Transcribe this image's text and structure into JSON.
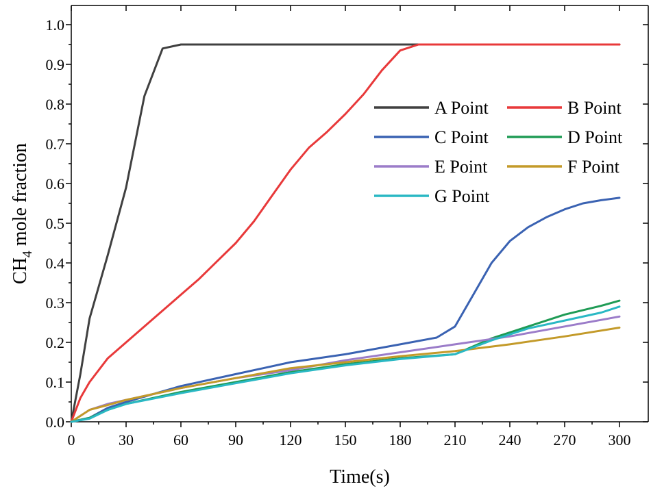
{
  "chart_data": {
    "type": "line",
    "xlabel": "Time(s)",
    "ylabel_main": "CH",
    "ylabel_sub": "4",
    "ylabel_rest": " mole fraction",
    "xlim": [
      0,
      315
    ],
    "ylim": [
      0,
      1.0
    ],
    "x_ticks": [
      0,
      30,
      60,
      90,
      120,
      150,
      180,
      210,
      240,
      270,
      300
    ],
    "x_tick_labels": [
      "0",
      "30",
      "60",
      "90",
      "120",
      "150",
      "180",
      "210",
      "240",
      "270",
      "300"
    ],
    "y_ticks": [
      0,
      0.1,
      0.2,
      0.3,
      0.4,
      0.5,
      0.6,
      0.7,
      0.8,
      0.9,
      1.0
    ],
    "y_tick_labels": [
      "0.0",
      "0.1",
      "0.2",
      "0.3",
      "0.4",
      "0.5",
      "0.6",
      "0.7",
      "0.8",
      "0.9",
      "1.0"
    ],
    "legend_position": "top-right",
    "series": [
      {
        "name": "A Point",
        "color": "#404040",
        "points": [
          [
            0,
            0
          ],
          [
            5,
            0.12
          ],
          [
            10,
            0.26
          ],
          [
            20,
            0.42
          ],
          [
            30,
            0.59
          ],
          [
            40,
            0.82
          ],
          [
            50,
            0.94
          ],
          [
            60,
            0.95
          ],
          [
            100,
            0.95
          ],
          [
            200,
            0.95
          ],
          [
            300,
            0.95
          ]
        ]
      },
      {
        "name": "B Point",
        "color": "#e8393a",
        "points": [
          [
            0,
            0
          ],
          [
            5,
            0.06
          ],
          [
            10,
            0.1
          ],
          [
            20,
            0.16
          ],
          [
            30,
            0.2
          ],
          [
            40,
            0.24
          ],
          [
            50,
            0.28
          ],
          [
            60,
            0.32
          ],
          [
            70,
            0.36
          ],
          [
            80,
            0.405
          ],
          [
            90,
            0.45
          ],
          [
            100,
            0.505
          ],
          [
            110,
            0.57
          ],
          [
            120,
            0.635
          ],
          [
            130,
            0.69
          ],
          [
            140,
            0.73
          ],
          [
            150,
            0.775
          ],
          [
            160,
            0.825
          ],
          [
            170,
            0.885
          ],
          [
            180,
            0.935
          ],
          [
            190,
            0.95
          ],
          [
            200,
            0.95
          ],
          [
            300,
            0.95
          ]
        ]
      },
      {
        "name": "C Point",
        "color": "#3a62b2",
        "points": [
          [
            0,
            0
          ],
          [
            10,
            0.01
          ],
          [
            20,
            0.035
          ],
          [
            30,
            0.05
          ],
          [
            60,
            0.09
          ],
          [
            90,
            0.12
          ],
          [
            120,
            0.15
          ],
          [
            150,
            0.17
          ],
          [
            180,
            0.195
          ],
          [
            200,
            0.212
          ],
          [
            210,
            0.24
          ],
          [
            220,
            0.32
          ],
          [
            230,
            0.4
          ],
          [
            240,
            0.455
          ],
          [
            250,
            0.49
          ],
          [
            260,
            0.515
          ],
          [
            270,
            0.535
          ],
          [
            280,
            0.55
          ],
          [
            290,
            0.558
          ],
          [
            300,
            0.564
          ]
        ]
      },
      {
        "name": "D Point",
        "color": "#1f9b55",
        "points": [
          [
            0,
            0
          ],
          [
            10,
            0.01
          ],
          [
            20,
            0.03
          ],
          [
            30,
            0.045
          ],
          [
            60,
            0.075
          ],
          [
            90,
            0.1
          ],
          [
            120,
            0.125
          ],
          [
            150,
            0.145
          ],
          [
            180,
            0.16
          ],
          [
            210,
            0.17
          ],
          [
            230,
            0.21
          ],
          [
            250,
            0.24
          ],
          [
            270,
            0.27
          ],
          [
            290,
            0.292
          ],
          [
            300,
            0.305
          ]
        ]
      },
      {
        "name": "E Point",
        "color": "#9b7cc9",
        "points": [
          [
            0,
            0
          ],
          [
            10,
            0.03
          ],
          [
            20,
            0.045
          ],
          [
            30,
            0.055
          ],
          [
            60,
            0.085
          ],
          [
            90,
            0.11
          ],
          [
            120,
            0.13
          ],
          [
            150,
            0.155
          ],
          [
            180,
            0.175
          ],
          [
            210,
            0.195
          ],
          [
            240,
            0.215
          ],
          [
            270,
            0.24
          ],
          [
            300,
            0.265
          ]
        ]
      },
      {
        "name": "F Point",
        "color": "#c39a29",
        "points": [
          [
            0,
            0
          ],
          [
            10,
            0.03
          ],
          [
            20,
            0.042
          ],
          [
            30,
            0.055
          ],
          [
            60,
            0.085
          ],
          [
            90,
            0.11
          ],
          [
            120,
            0.135
          ],
          [
            150,
            0.15
          ],
          [
            180,
            0.165
          ],
          [
            210,
            0.178
          ],
          [
            240,
            0.195
          ],
          [
            270,
            0.215
          ],
          [
            300,
            0.237
          ]
        ]
      },
      {
        "name": "G Point",
        "color": "#2ab8c4",
        "points": [
          [
            0,
            0
          ],
          [
            10,
            0.008
          ],
          [
            20,
            0.03
          ],
          [
            30,
            0.045
          ],
          [
            60,
            0.072
          ],
          [
            90,
            0.097
          ],
          [
            120,
            0.122
          ],
          [
            150,
            0.142
          ],
          [
            180,
            0.158
          ],
          [
            210,
            0.17
          ],
          [
            230,
            0.205
          ],
          [
            250,
            0.235
          ],
          [
            270,
            0.255
          ],
          [
            290,
            0.275
          ],
          [
            300,
            0.29
          ]
        ]
      }
    ]
  }
}
